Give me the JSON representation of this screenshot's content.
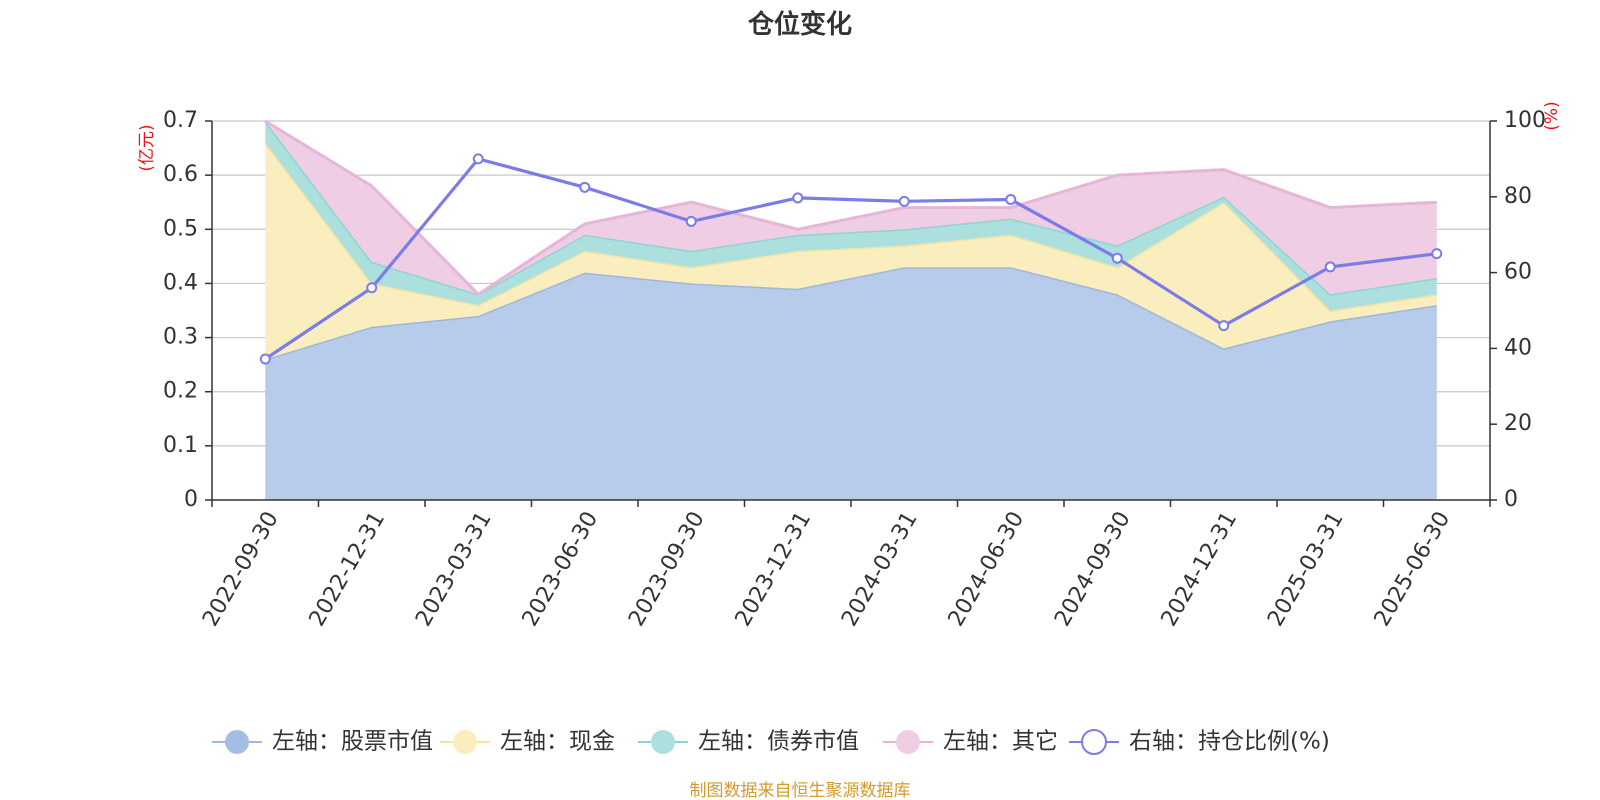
{
  "chart_data": {
    "type": "area",
    "title": "仓位变化",
    "source": "制图数据来自恒生聚源数据库",
    "left_axis": {
      "unit": "(亿元)",
      "min": 0,
      "max": 0.7,
      "ticks": [
        "0",
        "0.1",
        "0.2",
        "0.3",
        "0.4",
        "0.5",
        "0.6",
        "0.7"
      ]
    },
    "right_axis": {
      "unit": "(%)",
      "min": 0,
      "max": 100,
      "ticks": [
        "0",
        "20",
        "40",
        "60",
        "80",
        "100"
      ]
    },
    "categories": [
      "2022-09-30",
      "2022-12-31",
      "2023-03-31",
      "2023-06-30",
      "2023-09-30",
      "2023-12-31",
      "2024-03-31",
      "2024-06-30",
      "2024-09-30",
      "2024-12-31",
      "2025-03-31",
      "2025-06-30"
    ],
    "stacked_series": [
      {
        "name": "左轴：股票市值",
        "values": [
          0.26,
          0.32,
          0.34,
          0.42,
          0.4,
          0.39,
          0.43,
          0.43,
          0.38,
          0.28,
          0.33,
          0.36
        ]
      },
      {
        "name": "左轴：现金",
        "values": [
          0.4,
          0.08,
          0.02,
          0.04,
          0.03,
          0.07,
          0.04,
          0.06,
          0.05,
          0.27,
          0.02,
          0.02
        ]
      },
      {
        "name": "左轴：债券市值",
        "values": [
          0.04,
          0.04,
          0.02,
          0.03,
          0.03,
          0.03,
          0.03,
          0.03,
          0.04,
          0.01,
          0.03,
          0.03
        ]
      },
      {
        "name": "左轴：其它",
        "values": [
          0.0,
          0.14,
          0.0,
          0.02,
          0.09,
          0.01,
          0.04,
          0.02,
          0.13,
          0.05,
          0.16,
          0.14
        ]
      }
    ],
    "line_series": {
      "name": "右轴：持仓比例(%)",
      "values": [
        37.2,
        56.0,
        90.0,
        82.5,
        73.5,
        79.7,
        78.8,
        79.3,
        63.8,
        46.0,
        61.5,
        65.0
      ]
    },
    "colors": {
      "series_fill": [
        "#b7cbea",
        "#faeebe",
        "#ace0df",
        "#efcde5"
      ],
      "series_stroke": [
        "#9fb6de",
        "#f6e3a2",
        "#8fd4d2",
        "#e6b5d8"
      ],
      "line": "#7b7ce8",
      "unit_text": "#e8141a",
      "source_text": "#d49a2c",
      "grid": "#c8c8c8",
      "axis": "#333333"
    },
    "grid": true,
    "legend_position": "bottom"
  }
}
